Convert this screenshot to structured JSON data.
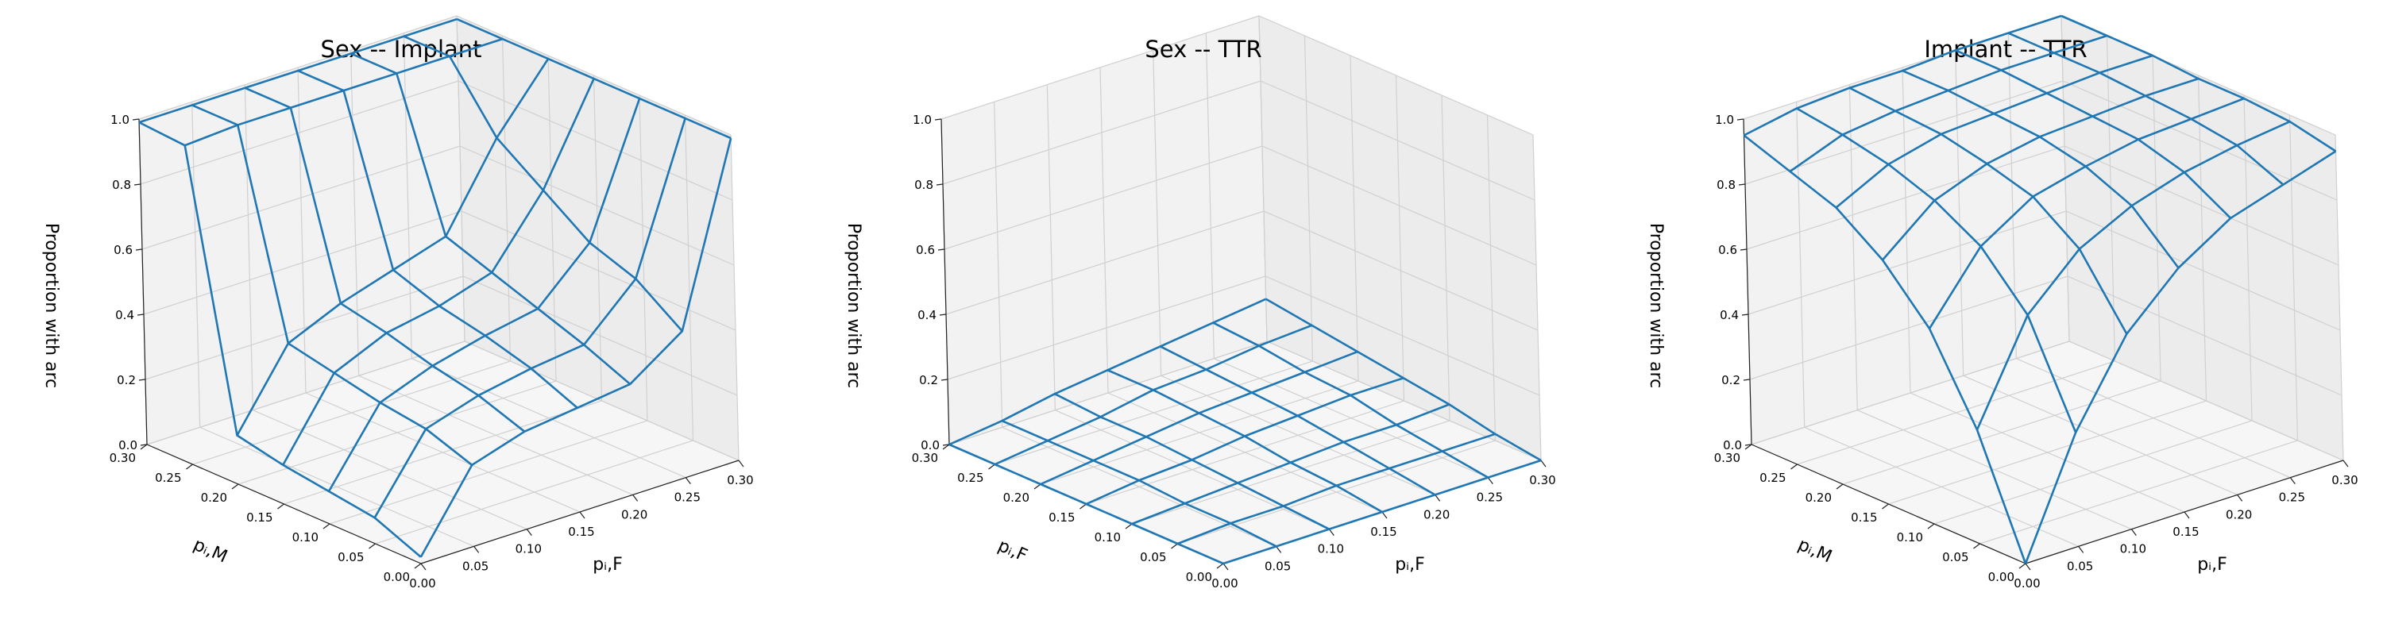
{
  "chart_data": [
    {
      "type": "surface",
      "title": "Sex -- Implant",
      "xlabel": "pᵢ,F",
      "ylabel": "pᵢ,M",
      "zlabel": "Proportion with arc",
      "xlim": [
        0,
        0.3
      ],
      "ylim": [
        0,
        0.3
      ],
      "zlim": [
        0,
        1
      ],
      "x_ticks": [
        "0.00",
        "0.05",
        "0.10",
        "0.15",
        "0.20",
        "0.25",
        "0.30"
      ],
      "y_ticks": [
        "0.00",
        "0.05",
        "0.10",
        "0.15",
        "0.20",
        "0.25",
        "0.30"
      ],
      "z_ticks": [
        "0.0",
        "0.2",
        "0.4",
        "0.6",
        "0.8",
        "1.0"
      ],
      "grid": true,
      "x": [
        0.0,
        0.05,
        0.1,
        0.15,
        0.2,
        0.25,
        0.3
      ],
      "y": [
        0.0,
        0.05,
        0.1,
        0.15,
        0.2,
        0.25,
        0.3
      ],
      "z": [
        [
          0.02,
          0.25,
          0.3,
          0.32,
          0.34,
          0.45,
          0.99
        ],
        [
          0.08,
          0.3,
          0.35,
          0.38,
          0.4,
          0.55,
          0.99
        ],
        [
          0.1,
          0.32,
          0.38,
          0.42,
          0.45,
          0.6,
          0.99
        ],
        [
          0.12,
          0.35,
          0.42,
          0.45,
          0.5,
          0.7,
          0.99
        ],
        [
          0.15,
          0.38,
          0.45,
          0.5,
          0.55,
          0.8,
          0.99
        ],
        [
          0.98,
          0.99,
          0.99,
          0.99,
          0.99,
          0.99,
          0.99
        ],
        [
          0.99,
          0.99,
          0.99,
          0.99,
          0.99,
          0.99,
          0.99
        ]
      ]
    },
    {
      "type": "surface",
      "title": "Sex -- TTR",
      "xlabel": "pᵢ,F",
      "ylabel": "pᵢ,F",
      "zlabel": "Proportion with arc",
      "xlim": [
        0,
        0.3
      ],
      "ylim": [
        0,
        0.3
      ],
      "zlim": [
        0,
        1
      ],
      "x_ticks": [
        "0.00",
        "0.05",
        "0.10",
        "0.15",
        "0.20",
        "0.25",
        "0.30"
      ],
      "y_ticks": [
        "0.00",
        "0.05",
        "0.10",
        "0.15",
        "0.20",
        "0.25",
        "0.30"
      ],
      "z_ticks": [
        "0.0",
        "0.2",
        "0.4",
        "0.6",
        "0.8",
        "1.0"
      ],
      "grid": true,
      "x": [
        0.0,
        0.05,
        0.1,
        0.15,
        0.2,
        0.25,
        0.3
      ],
      "y": [
        0.0,
        0.05,
        0.1,
        0.15,
        0.2,
        0.25,
        0.3
      ],
      "z": [
        [
          0.0,
          0.0,
          0.0,
          0.0,
          0.0,
          0.0,
          0.0
        ],
        [
          0.0,
          0.01,
          0.01,
          0.02,
          0.02,
          0.02,
          0.02
        ],
        [
          0.0,
          0.01,
          0.02,
          0.03,
          0.04,
          0.04,
          0.05
        ],
        [
          0.0,
          0.02,
          0.03,
          0.05,
          0.06,
          0.07,
          0.07
        ],
        [
          0.0,
          0.02,
          0.04,
          0.06,
          0.07,
          0.08,
          0.09
        ],
        [
          0.0,
          0.02,
          0.04,
          0.07,
          0.08,
          0.1,
          0.11
        ],
        [
          0.0,
          0.02,
          0.05,
          0.07,
          0.09,
          0.11,
          0.13
        ]
      ]
    },
    {
      "type": "surface",
      "title": "Implant -- TTR",
      "xlabel": "pᵢ,F",
      "ylabel": "pᵢ,M",
      "zlabel": "Proportion with arc",
      "xlim": [
        0,
        0.3
      ],
      "ylim": [
        0,
        0.3
      ],
      "zlim": [
        0,
        1
      ],
      "x_ticks": [
        "0.00",
        "0.05",
        "0.10",
        "0.15",
        "0.20",
        "0.25",
        "0.30"
      ],
      "y_ticks": [
        "0.00",
        "0.05",
        "0.10",
        "0.15",
        "0.20",
        "0.25",
        "0.30"
      ],
      "z_ticks": [
        "0.0",
        "0.2",
        "0.4",
        "0.6",
        "0.8",
        "1.0"
      ],
      "grid": true,
      "x": [
        0.0,
        0.05,
        0.1,
        0.15,
        0.2,
        0.25,
        0.3
      ],
      "y": [
        0.0,
        0.05,
        0.1,
        0.15,
        0.2,
        0.25,
        0.3
      ],
      "z": [
        [
          0.0,
          0.35,
          0.6,
          0.75,
          0.85,
          0.9,
          0.95
        ],
        [
          0.35,
          0.65,
          0.8,
          0.88,
          0.93,
          0.96,
          0.98
        ],
        [
          0.6,
          0.8,
          0.9,
          0.94,
          0.97,
          0.98,
          0.99
        ],
        [
          0.75,
          0.88,
          0.94,
          0.97,
          0.98,
          0.99,
          0.99
        ],
        [
          0.85,
          0.93,
          0.97,
          0.98,
          0.99,
          1.0,
          1.0
        ],
        [
          0.9,
          0.96,
          0.98,
          0.99,
          1.0,
          1.0,
          1.0
        ],
        [
          0.95,
          0.98,
          0.99,
          0.99,
          1.0,
          1.0,
          1.0
        ]
      ]
    }
  ]
}
